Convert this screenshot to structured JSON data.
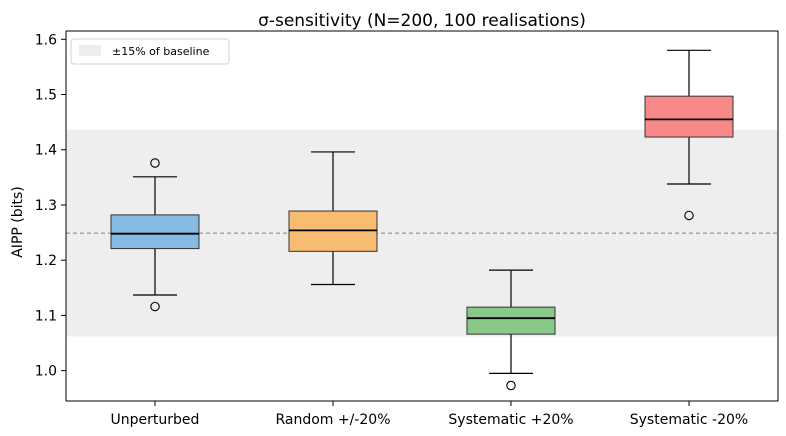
{
  "chart_data": {
    "type": "box",
    "title": "σ-sensitivity (N=200, 100 realisations)",
    "xlabel": "",
    "ylabel": "AIPP (bits)",
    "ylim": [
      0.945,
      1.615
    ],
    "yticks": [
      "1.0",
      "1.1",
      "1.2",
      "1.3",
      "1.4",
      "1.5",
      "1.6"
    ],
    "grid": false,
    "legend": {
      "position": "top-left",
      "entries": [
        "±15% of baseline"
      ]
    },
    "baseline": 1.249,
    "band": {
      "low": 1.062,
      "high": 1.436,
      "label": "±15% of baseline"
    },
    "categories": [
      "Unperturbed",
      "Random +/-20%",
      "Systematic +20%",
      "Systematic -20%"
    ],
    "boxes": [
      {
        "name": "Unperturbed",
        "color": "#85bbe0",
        "whisker_low": 1.137,
        "q1": 1.221,
        "median": 1.248,
        "q3": 1.282,
        "whisker_high": 1.351,
        "outliers": [
          1.116,
          1.376
        ]
      },
      {
        "name": "Random +/-20%",
        "color": "#f7bb72",
        "whisker_low": 1.156,
        "q1": 1.216,
        "median": 1.254,
        "q3": 1.289,
        "whisker_high": 1.396,
        "outliers": []
      },
      {
        "name": "Systematic +20%",
        "color": "#88c988",
        "whisker_low": 0.995,
        "q1": 1.066,
        "median": 1.095,
        "q3": 1.115,
        "whisker_high": 1.182,
        "outliers": [
          0.973
        ]
      },
      {
        "name": "Systematic -20%",
        "color": "#f78a88",
        "whisker_low": 1.338,
        "q1": 1.423,
        "median": 1.455,
        "q3": 1.497,
        "whisker_high": 1.58,
        "outliers": [
          1.281
        ]
      }
    ]
  }
}
